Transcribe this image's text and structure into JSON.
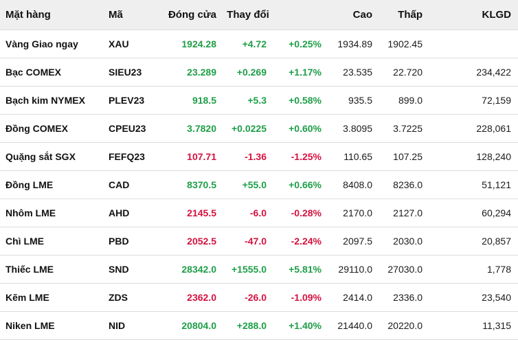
{
  "colors": {
    "up": "#1e9e48",
    "down": "#d3123f",
    "header_bg": "#efefef"
  },
  "header": {
    "name": "Mặt hàng",
    "code": "Mã",
    "close": "Đóng cửa",
    "change": "Thay đổi",
    "high": "Cao",
    "low": "Thấp",
    "volume": "KLGD"
  },
  "rows": [
    {
      "name": "Vàng Giao ngay",
      "code": "XAU",
      "close": "1924.28",
      "change": "+4.72",
      "pct": "+0.25%",
      "high": "1934.89",
      "low": "1902.45",
      "volume": "",
      "dir": "up"
    },
    {
      "name": "Bạc COMEX",
      "code": "SIEU23",
      "close": "23.289",
      "change": "+0.269",
      "pct": "+1.17%",
      "high": "23.535",
      "low": "22.720",
      "volume": "234,422",
      "dir": "up"
    },
    {
      "name": "Bạch kim NYMEX",
      "code": "PLEV23",
      "close": "918.5",
      "change": "+5.3",
      "pct": "+0.58%",
      "high": "935.5",
      "low": "899.0",
      "volume": "72,159",
      "dir": "up"
    },
    {
      "name": "Đồng COMEX",
      "code": "CPEU23",
      "close": "3.7820",
      "change": "+0.0225",
      "pct": "+0.60%",
      "high": "3.8095",
      "low": "3.7225",
      "volume": "228,061",
      "dir": "up"
    },
    {
      "name": "Quặng sắt SGX",
      "code": "FEFQ23",
      "close": "107.71",
      "change": "-1.36",
      "pct": "-1.25%",
      "high": "110.65",
      "low": "107.25",
      "volume": "128,240",
      "dir": "down"
    },
    {
      "name": "Đồng LME",
      "code": "CAD",
      "close": "8370.5",
      "change": "+55.0",
      "pct": "+0.66%",
      "high": "8408.0",
      "low": "8236.0",
      "volume": "51,121",
      "dir": "up"
    },
    {
      "name": "Nhôm LME",
      "code": "AHD",
      "close": "2145.5",
      "change": "-6.0",
      "pct": "-0.28%",
      "high": "2170.0",
      "low": "2127.0",
      "volume": "60,294",
      "dir": "down"
    },
    {
      "name": "Chì LME",
      "code": "PBD",
      "close": "2052.5",
      "change": "-47.0",
      "pct": "-2.24%",
      "high": "2097.5",
      "low": "2030.0",
      "volume": "20,857",
      "dir": "down"
    },
    {
      "name": "Thiếc LME",
      "code": "SND",
      "close": "28342.0",
      "change": "+1555.0",
      "pct": "+5.81%",
      "high": "29110.0",
      "low": "27030.0",
      "volume": "1,778",
      "dir": "up"
    },
    {
      "name": "Kẽm LME",
      "code": "ZDS",
      "close": "2362.0",
      "change": "-26.0",
      "pct": "-1.09%",
      "high": "2414.0",
      "low": "2336.0",
      "volume": "23,540",
      "dir": "down"
    },
    {
      "name": "Niken LME",
      "code": "NID",
      "close": "20804.0",
      "change": "+288.0",
      "pct": "+1.40%",
      "high": "21440.0",
      "low": "20220.0",
      "volume": "11,315",
      "dir": "up"
    }
  ]
}
